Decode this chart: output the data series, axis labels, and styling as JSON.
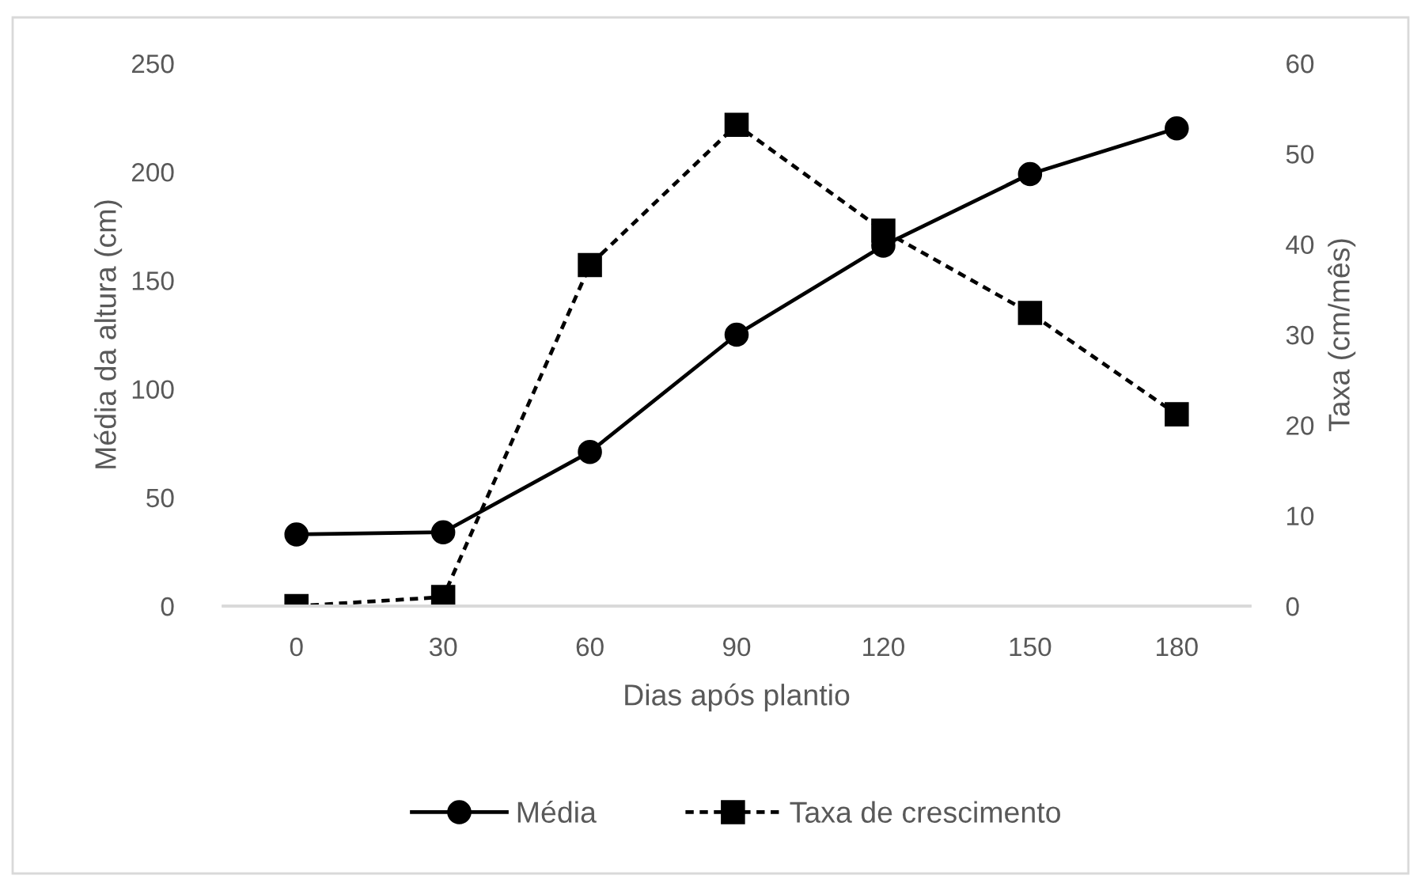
{
  "chart_data": {
    "type": "line",
    "xlabel": "Dias após plantio",
    "ylabel": "Média da altura (cm)",
    "y2label": "Taxa (cm/mês)",
    "categories": [
      "0",
      "30",
      "60",
      "90",
      "120",
      "150",
      "180"
    ],
    "series": [
      {
        "name": "Média",
        "color": "#000000",
        "values": [
          33,
          34,
          71,
          125,
          166,
          199,
          220
        ],
        "marker": "circle",
        "line_style": "solid"
      },
      {
        "name": "Taxa de crescimento",
        "color": "#000000",
        "values": [
          0,
          1,
          37.7,
          53.2,
          41.5,
          32.4,
          21.2
        ],
        "axis": "y2",
        "marker": "square",
        "line_style": "dashed"
      }
    ],
    "ylim": [
      0,
      250
    ],
    "yticks": [
      0,
      50,
      100,
      150,
      200,
      250
    ],
    "y2lim": [
      0,
      60
    ],
    "y2ticks": [
      0,
      10,
      20,
      30,
      40,
      50,
      60
    ],
    "grid": false,
    "legend": "bottom"
  }
}
